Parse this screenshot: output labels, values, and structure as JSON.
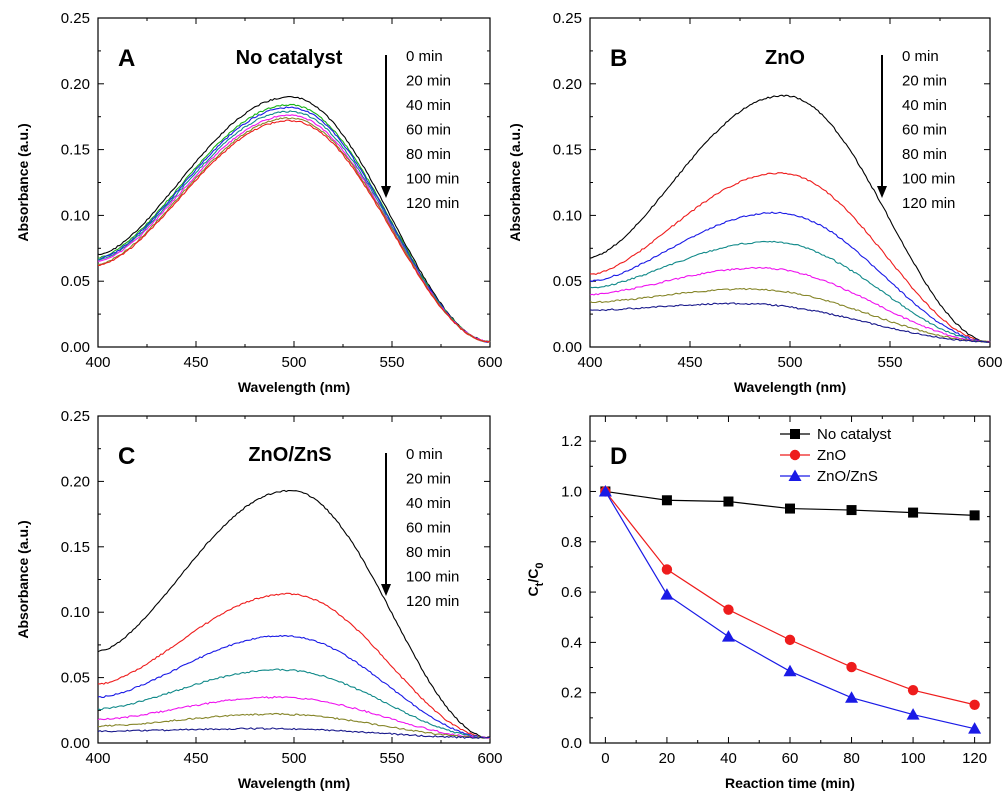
{
  "colors": {
    "black": "#000000",
    "red": "#ee1c1c",
    "blue": "#1a1ae6",
    "teal": "#128a8a",
    "magenta": "#ef14ef",
    "olive": "#86862a",
    "navy": "#1a1a8c",
    "green": "#17b317"
  },
  "chart_data": [
    {
      "id": "A",
      "type": "line",
      "panel_letter": "A",
      "title": "No catalyst",
      "xlabel": "Wavelength (nm)",
      "ylabel": "Absorbance (a.u.)",
      "xlim": [
        400,
        600
      ],
      "ylim": [
        0,
        0.25
      ],
      "xticks": [
        "400",
        "450",
        "500",
        "550",
        "600"
      ],
      "yticks": [
        "0.00",
        "0.05",
        "0.10",
        "0.15",
        "0.20",
        "0.25"
      ],
      "time_labels": [
        "0 min",
        "20 min",
        "40 min",
        "60 min",
        "80 min",
        "100 min",
        "120 min"
      ],
      "series": [
        {
          "name": "0 min",
          "color": "black",
          "peak_x": 498,
          "peak": 0.19,
          "start": 0.07
        },
        {
          "name": "20 min",
          "color": "green",
          "peak_x": 498,
          "peak": 0.184,
          "start": 0.068
        },
        {
          "name": "40 min",
          "color": "blue",
          "peak_x": 498,
          "peak": 0.182,
          "start": 0.067
        },
        {
          "name": "60 min",
          "color": "teal",
          "peak_x": 498,
          "peak": 0.179,
          "start": 0.066
        },
        {
          "name": "80 min",
          "color": "magenta",
          "peak_x": 498,
          "peak": 0.176,
          "start": 0.065
        },
        {
          "name": "100 min",
          "color": "olive",
          "peak_x": 498,
          "peak": 0.174,
          "start": 0.063
        },
        {
          "name": "120 min",
          "color": "red",
          "peak_x": 498,
          "peak": 0.172,
          "start": 0.062
        }
      ]
    },
    {
      "id": "B",
      "type": "line",
      "panel_letter": "B",
      "title": "ZnO",
      "xlabel": "Wavelength (nm)",
      "ylabel": "Absorbance (a.u.)",
      "xlim": [
        400,
        600
      ],
      "ylim": [
        0,
        0.25
      ],
      "xticks": [
        "400",
        "450",
        "500",
        "550",
        "600"
      ],
      "yticks": [
        "0.00",
        "0.05",
        "0.10",
        "0.15",
        "0.20",
        "0.25"
      ],
      "time_labels": [
        "0 min",
        "20 min",
        "40 min",
        "60 min",
        "80 min",
        "100 min",
        "120 min"
      ],
      "series": [
        {
          "name": "0 min",
          "color": "black",
          "peak_x": 497,
          "peak": 0.191,
          "start": 0.068
        },
        {
          "name": "20 min",
          "color": "red",
          "peak_x": 495,
          "peak": 0.132,
          "start": 0.055
        },
        {
          "name": "40 min",
          "color": "blue",
          "peak_x": 493,
          "peak": 0.102,
          "start": 0.05
        },
        {
          "name": "60 min",
          "color": "teal",
          "peak_x": 490,
          "peak": 0.08,
          "start": 0.045
        },
        {
          "name": "80 min",
          "color": "magenta",
          "peak_x": 485,
          "peak": 0.06,
          "start": 0.04
        },
        {
          "name": "100 min",
          "color": "olive",
          "peak_x": 480,
          "peak": 0.044,
          "start": 0.034
        },
        {
          "name": "120 min",
          "color": "navy",
          "peak_x": 475,
          "peak": 0.033,
          "start": 0.028
        }
      ]
    },
    {
      "id": "C",
      "type": "line",
      "panel_letter": "C",
      "title": "ZnO/ZnS",
      "xlabel": "Wavelength (nm)",
      "ylabel": "Absorbance (a.u.)",
      "xlim": [
        400,
        600
      ],
      "ylim": [
        0,
        0.25
      ],
      "xticks": [
        "400",
        "450",
        "500",
        "550",
        "600"
      ],
      "yticks": [
        "0.00",
        "0.05",
        "0.10",
        "0.15",
        "0.20",
        "0.25"
      ],
      "time_labels": [
        "0 min",
        "20 min",
        "40 min",
        "60 min",
        "80 min",
        "100 min",
        "120 min"
      ],
      "series": [
        {
          "name": "0 min",
          "color": "black",
          "peak_x": 498,
          "peak": 0.193,
          "start": 0.07
        },
        {
          "name": "20 min",
          "color": "red",
          "peak_x": 497,
          "peak": 0.114,
          "start": 0.045
        },
        {
          "name": "40 min",
          "color": "blue",
          "peak_x": 495,
          "peak": 0.082,
          "start": 0.035
        },
        {
          "name": "60 min",
          "color": "teal",
          "peak_x": 493,
          "peak": 0.056,
          "start": 0.026
        },
        {
          "name": "80 min",
          "color": "magenta",
          "peak_x": 492,
          "peak": 0.035,
          "start": 0.018
        },
        {
          "name": "100 min",
          "color": "olive",
          "peak_x": 490,
          "peak": 0.022,
          "start": 0.013
        },
        {
          "name": "120 min",
          "color": "navy",
          "peak_x": 485,
          "peak": 0.011,
          "start": 0.009
        }
      ]
    },
    {
      "id": "D",
      "type": "line",
      "panel_letter": "D",
      "title": "",
      "xlabel": "Reaction time (min)",
      "ylabel_main": "C",
      "ylabel_sub1": "t",
      "ylabel_sep": "/C",
      "ylabel_sub2": "0",
      "xlim": [
        -5,
        125
      ],
      "ylim": [
        0,
        1.3
      ],
      "xticks": [
        "0",
        "20",
        "40",
        "60",
        "80",
        "100",
        "120"
      ],
      "yticks": [
        "0.0",
        "0.2",
        "0.4",
        "0.6",
        "0.8",
        "1.0",
        "1.2"
      ],
      "x": [
        0,
        20,
        40,
        60,
        80,
        100,
        120
      ],
      "series": [
        {
          "name": "No catalyst",
          "color": "black",
          "marker": "square",
          "values": [
            1.0,
            0.965,
            0.96,
            0.932,
            0.926,
            0.916,
            0.905
          ]
        },
        {
          "name": "ZnO",
          "color": "red",
          "marker": "circle",
          "values": [
            1.0,
            0.69,
            0.53,
            0.41,
            0.302,
            0.21,
            0.152
          ]
        },
        {
          "name": "ZnO/ZnS",
          "color": "blue",
          "marker": "triangle",
          "values": [
            1.0,
            0.59,
            0.423,
            0.285,
            0.18,
            0.113,
            0.057
          ]
        }
      ]
    }
  ]
}
